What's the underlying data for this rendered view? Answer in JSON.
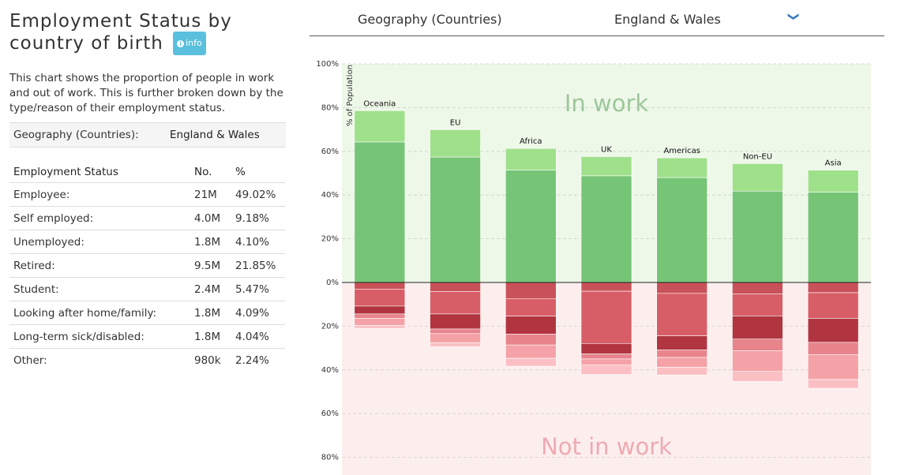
{
  "panel": {
    "title_line1": "Employment Status by",
    "title_line2": "country of birth",
    "info_label": "info",
    "description": "This chart shows the proportion of people in work and out of work. This is further broken down by the type/reason of their employment status.",
    "geo_key": "Geography (Countries):",
    "geo_value": "England & Wales",
    "table_headers": [
      "Employment Status",
      "No.",
      "%"
    ],
    "rows": [
      {
        "status": "Employee:",
        "no": "21M",
        "pct": "49.02%"
      },
      {
        "status": "Self employed:",
        "no": "4.0M",
        "pct": "9.18%"
      },
      {
        "status": "Unemployed:",
        "no": "1.8M",
        "pct": "4.10%"
      },
      {
        "status": "Retired:",
        "no": "9.5M",
        "pct": "21.85%"
      },
      {
        "status": "Student:",
        "no": "2.4M",
        "pct": "5.47%"
      },
      {
        "status": "Looking after home/family:",
        "no": "1.8M",
        "pct": "4.09%"
      },
      {
        "status": "Long-term sick/disabled:",
        "no": "1.8M",
        "pct": "4.04%"
      },
      {
        "status": "Other:",
        "no": "980k",
        "pct": "2.24%"
      }
    ]
  },
  "selector": {
    "label": "Geography (Countries)",
    "value": "England & Wales",
    "chevron_icon": "chevron-down-icon"
  },
  "colors": {
    "in_work_bg": "#eef8e9",
    "not_in_work_bg": "#fdeeee",
    "in_work_text": "#9cc79b",
    "not_in_work_text": "#eeaab1",
    "employee": "#76c577",
    "self_employed": "#9fe08a",
    "out_of_work": [
      "#c95159",
      "#d75d66",
      "#b13540",
      "#e8848c",
      "#f4a2a7",
      "#fbbfc3"
    ]
  },
  "chart_data": {
    "type": "bar",
    "ylabel": "% of Population",
    "ylim": [
      -88,
      100
    ],
    "y_ticks": [
      {
        "value": 100,
        "label": "100%"
      },
      {
        "value": 80,
        "label": "80%"
      },
      {
        "value": 60,
        "label": "60%"
      },
      {
        "value": 40,
        "label": "40%"
      },
      {
        "value": 20,
        "label": "20%"
      },
      {
        "value": 0,
        "label": "0%"
      },
      {
        "value": -20,
        "label": "20%"
      },
      {
        "value": -40,
        "label": "40%"
      },
      {
        "value": -60,
        "label": "60%"
      },
      {
        "value": -80,
        "label": "80%"
      }
    ],
    "region_labels": {
      "positive": "In work",
      "negative": "Not in work"
    },
    "categories": [
      "Oceania",
      "EU",
      "Africa",
      "UK",
      "Americas",
      "Non-EU",
      "Asia"
    ],
    "in_work_series": [
      {
        "key": "employee",
        "values": [
          64.3,
          57.4,
          51.4,
          48.8,
          48.0,
          41.8,
          41.3
        ]
      },
      {
        "key": "self_employed",
        "values": [
          14.3,
          12.5,
          9.9,
          8.8,
          9.0,
          12.6,
          10.1
        ]
      }
    ],
    "not_in_work_series": [
      {
        "key": "seg1",
        "values": [
          3.0,
          4.1,
          7.5,
          4.0,
          5.0,
          5.3,
          4.7
        ]
      },
      {
        "key": "seg2",
        "values": [
          7.8,
          10.3,
          7.9,
          23.9,
          19.4,
          10.0,
          11.7
        ]
      },
      {
        "key": "seg3",
        "values": [
          3.6,
          6.9,
          8.2,
          4.8,
          6.5,
          10.6,
          11.0
        ]
      },
      {
        "key": "seg4",
        "values": [
          2.0,
          2.1,
          5.0,
          2.3,
          3.4,
          5.3,
          5.7
        ]
      },
      {
        "key": "seg5",
        "values": [
          3.3,
          4.2,
          6.1,
          2.8,
          4.5,
          9.5,
          11.3
        ]
      },
      {
        "key": "seg6",
        "values": [
          1.3,
          1.8,
          3.6,
          4.3,
          3.5,
          4.6,
          4.0
        ]
      }
    ]
  }
}
